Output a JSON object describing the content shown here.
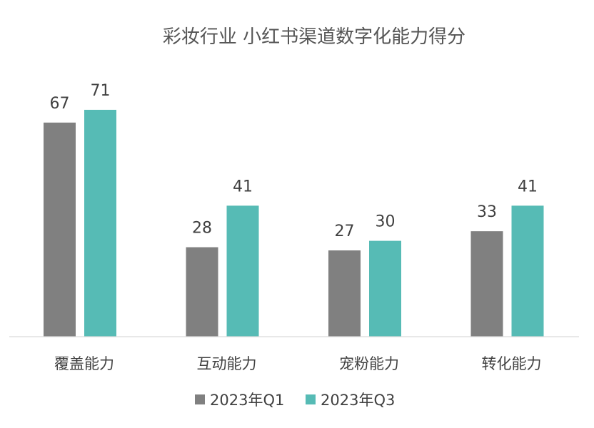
{
  "chart_data": {
    "type": "bar",
    "title": "彩妆行业 小红书渠道数字化能力得分",
    "categories": [
      "覆盖能力",
      "互动能力",
      "宠粉能力",
      "转化能力"
    ],
    "series": [
      {
        "name": "2023年Q1",
        "values": [
          67,
          28,
          27,
          33
        ],
        "color": "#808080"
      },
      {
        "name": "2023年Q3",
        "values": [
          71,
          41,
          30,
          41
        ],
        "color": "#56BBB5"
      }
    ],
    "xlabel": "",
    "ylabel": "",
    "ylim": [
      0,
      80
    ],
    "grid": false,
    "legend": "bottom"
  }
}
